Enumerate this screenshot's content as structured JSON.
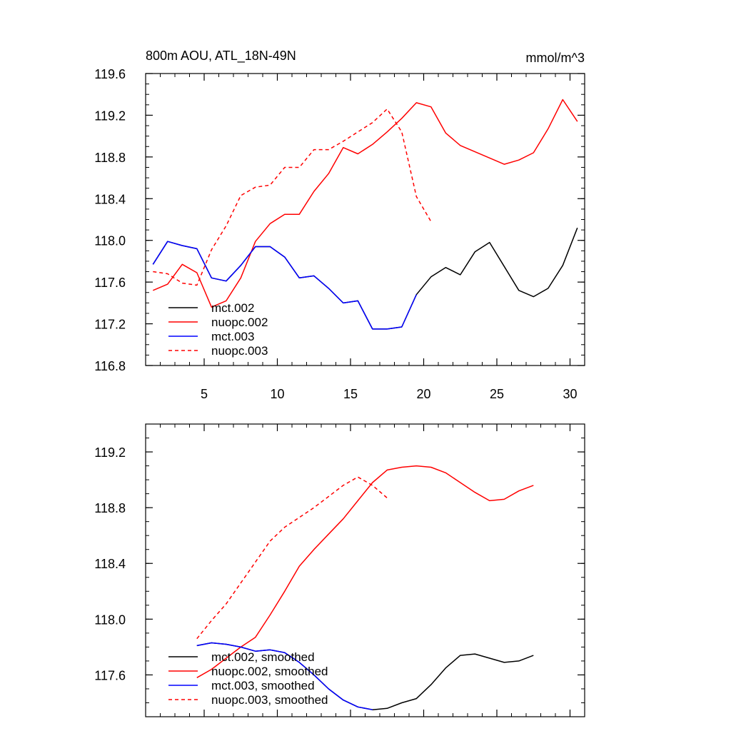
{
  "chart_data": [
    {
      "type": "line",
      "title": "800m AOU, ATL_18N-49N",
      "units": "mmol/m^3",
      "xlim": [
        1,
        31
      ],
      "ylim": [
        116.8,
        119.6
      ],
      "xticks": [
        5,
        10,
        15,
        20,
        25,
        30
      ],
      "xtick_labels": [
        "5",
        "10",
        "15",
        "20",
        "25",
        "30"
      ],
      "yticks": [
        116.8,
        117.2,
        117.6,
        118.0,
        118.4,
        118.8,
        119.2,
        119.6
      ],
      "ytick_labels": [
        "116.8",
        "117.2",
        "117.6",
        "118.0",
        "118.4",
        "118.8",
        "119.2",
        "119.6"
      ],
      "series": [
        {
          "name": "mct.002",
          "color": "#000000",
          "dash": "solid",
          "x": [
            1.5,
            2.5,
            3.5,
            4.5,
            5.5,
            6.5,
            7.5,
            8.5,
            9.5,
            10.5,
            11.5,
            12.5,
            13.5,
            14.5,
            15.5,
            16.5,
            17.5,
            18.5,
            19.5,
            20.5,
            21.5,
            22.5,
            23.5,
            24.5,
            25.5,
            26.5,
            27.5,
            28.5,
            29.5,
            30.5
          ],
          "y": [
            117.77,
            117.99,
            117.95,
            117.92,
            117.64,
            117.61,
            117.76,
            117.94,
            117.94,
            117.84,
            117.64,
            117.66,
            117.54,
            117.4,
            117.42,
            117.15,
            117.15,
            117.17,
            117.48,
            117.65,
            117.74,
            117.67,
            117.89,
            117.98,
            117.75,
            117.52,
            117.46,
            117.54,
            117.76,
            118.12
          ]
        },
        {
          "name": "nuopc.002",
          "color": "#ff0000",
          "dash": "solid",
          "x": [
            1.5,
            2.5,
            3.5,
            4.5,
            5.5,
            6.5,
            7.5,
            8.5,
            9.5,
            10.5,
            11.5,
            12.5,
            13.5,
            14.5,
            15.5,
            16.5,
            17.5,
            18.5,
            19.5,
            20.5,
            21.5,
            22.5,
            23.5,
            24.5,
            25.5,
            26.5,
            27.5,
            28.5,
            29.5,
            30.5
          ],
          "y": [
            117.52,
            117.58,
            117.77,
            117.69,
            117.36,
            117.42,
            117.64,
            117.99,
            118.16,
            118.25,
            118.25,
            118.47,
            118.64,
            118.89,
            118.83,
            118.92,
            119.04,
            119.17,
            119.32,
            119.28,
            119.03,
            118.91,
            118.85,
            118.79,
            118.73,
            118.77,
            118.84,
            119.07,
            119.35,
            119.14
          ]
        },
        {
          "name": "mct.003",
          "color": "#0000ff",
          "dash": "solid",
          "x": [
            1.5,
            2.5,
            3.5,
            4.5,
            5.5,
            6.5,
            7.5,
            8.5,
            9.5,
            10.5,
            11.5,
            12.5,
            13.5,
            14.5,
            15.5,
            16.5,
            17.5,
            18.5,
            19.5
          ],
          "y": [
            117.77,
            117.99,
            117.95,
            117.92,
            117.64,
            117.61,
            117.76,
            117.94,
            117.94,
            117.84,
            117.64,
            117.66,
            117.54,
            117.4,
            117.42,
            117.15,
            117.15,
            117.17,
            117.48
          ]
        },
        {
          "name": "nuopc.003",
          "color": "#ff0000",
          "dash": "dashed",
          "x": [
            1.5,
            2.5,
            3.5,
            4.5,
            5.5,
            6.5,
            7.5,
            8.5,
            9.5,
            10.5,
            11.5,
            12.5,
            13.5,
            14.5,
            15.5,
            16.5,
            17.5,
            18.5,
            19.5,
            20.5
          ],
          "y": [
            117.7,
            117.68,
            117.59,
            117.57,
            117.91,
            118.14,
            118.43,
            118.51,
            118.53,
            118.7,
            118.7,
            118.87,
            118.87,
            118.95,
            119.04,
            119.13,
            119.26,
            119.04,
            118.42,
            118.18
          ]
        }
      ]
    },
    {
      "type": "line",
      "xlim": [
        1,
        31
      ],
      "ylim": [
        117.3,
        119.4
      ],
      "xticks": [
        5,
        10,
        15,
        20,
        25,
        30
      ],
      "yticks": [
        117.6,
        118.0,
        118.4,
        118.8,
        119.2
      ],
      "ytick_labels": [
        "117.6",
        "118.0",
        "118.4",
        "118.8",
        "119.2"
      ],
      "series": [
        {
          "name": "mct.002, smoothed",
          "color": "#000000",
          "dash": "solid",
          "x": [
            4.5,
            5.5,
            6.5,
            7.5,
            8.5,
            9.5,
            10.5,
            11.5,
            12.5,
            13.5,
            14.5,
            15.5,
            16.5,
            17.5,
            18.5,
            19.5,
            20.5,
            21.5,
            22.5,
            23.5,
            24.5,
            25.5,
            26.5,
            27.5
          ],
          "y": [
            117.81,
            117.83,
            117.82,
            117.8,
            117.77,
            117.78,
            117.76,
            117.69,
            117.6,
            117.5,
            117.42,
            117.37,
            117.35,
            117.36,
            117.4,
            117.43,
            117.53,
            117.65,
            117.74,
            117.75,
            117.72,
            117.69,
            117.7,
            117.74
          ]
        },
        {
          "name": "nuopc.002, smoothed",
          "color": "#ff0000",
          "dash": "solid",
          "x": [
            4.5,
            5.5,
            6.5,
            7.5,
            8.5,
            9.5,
            10.5,
            11.5,
            12.5,
            13.5,
            14.5,
            15.5,
            16.5,
            17.5,
            18.5,
            19.5,
            20.5,
            21.5,
            22.5,
            23.5,
            24.5,
            25.5,
            26.5,
            27.5
          ],
          "y": [
            117.58,
            117.64,
            117.72,
            117.8,
            117.87,
            118.03,
            118.2,
            118.38,
            118.5,
            118.61,
            118.72,
            118.85,
            118.98,
            119.07,
            119.09,
            119.1,
            119.09,
            119.05,
            118.98,
            118.91,
            118.85,
            118.86,
            118.92,
            118.96
          ]
        },
        {
          "name": "mct.003, smoothed",
          "color": "#0000ff",
          "dash": "solid",
          "x": [
            4.5,
            5.5,
            6.5,
            7.5,
            8.5,
            9.5,
            10.5,
            11.5,
            12.5,
            13.5,
            14.5,
            15.5,
            16.5
          ],
          "y": [
            117.81,
            117.83,
            117.82,
            117.8,
            117.77,
            117.78,
            117.76,
            117.69,
            117.6,
            117.5,
            117.42,
            117.37,
            117.35
          ]
        },
        {
          "name": "nuopc.003, smoothed",
          "color": "#ff0000",
          "dash": "dashed",
          "x": [
            4.5,
            5.5,
            6.5,
            7.5,
            8.5,
            9.5,
            10.5,
            11.5,
            12.5,
            13.5,
            14.5,
            15.5,
            16.5,
            17.5
          ],
          "y": [
            117.86,
            117.99,
            118.11,
            118.26,
            118.41,
            118.56,
            118.66,
            118.73,
            118.8,
            118.88,
            118.96,
            119.02,
            118.96,
            118.87
          ]
        }
      ]
    }
  ]
}
